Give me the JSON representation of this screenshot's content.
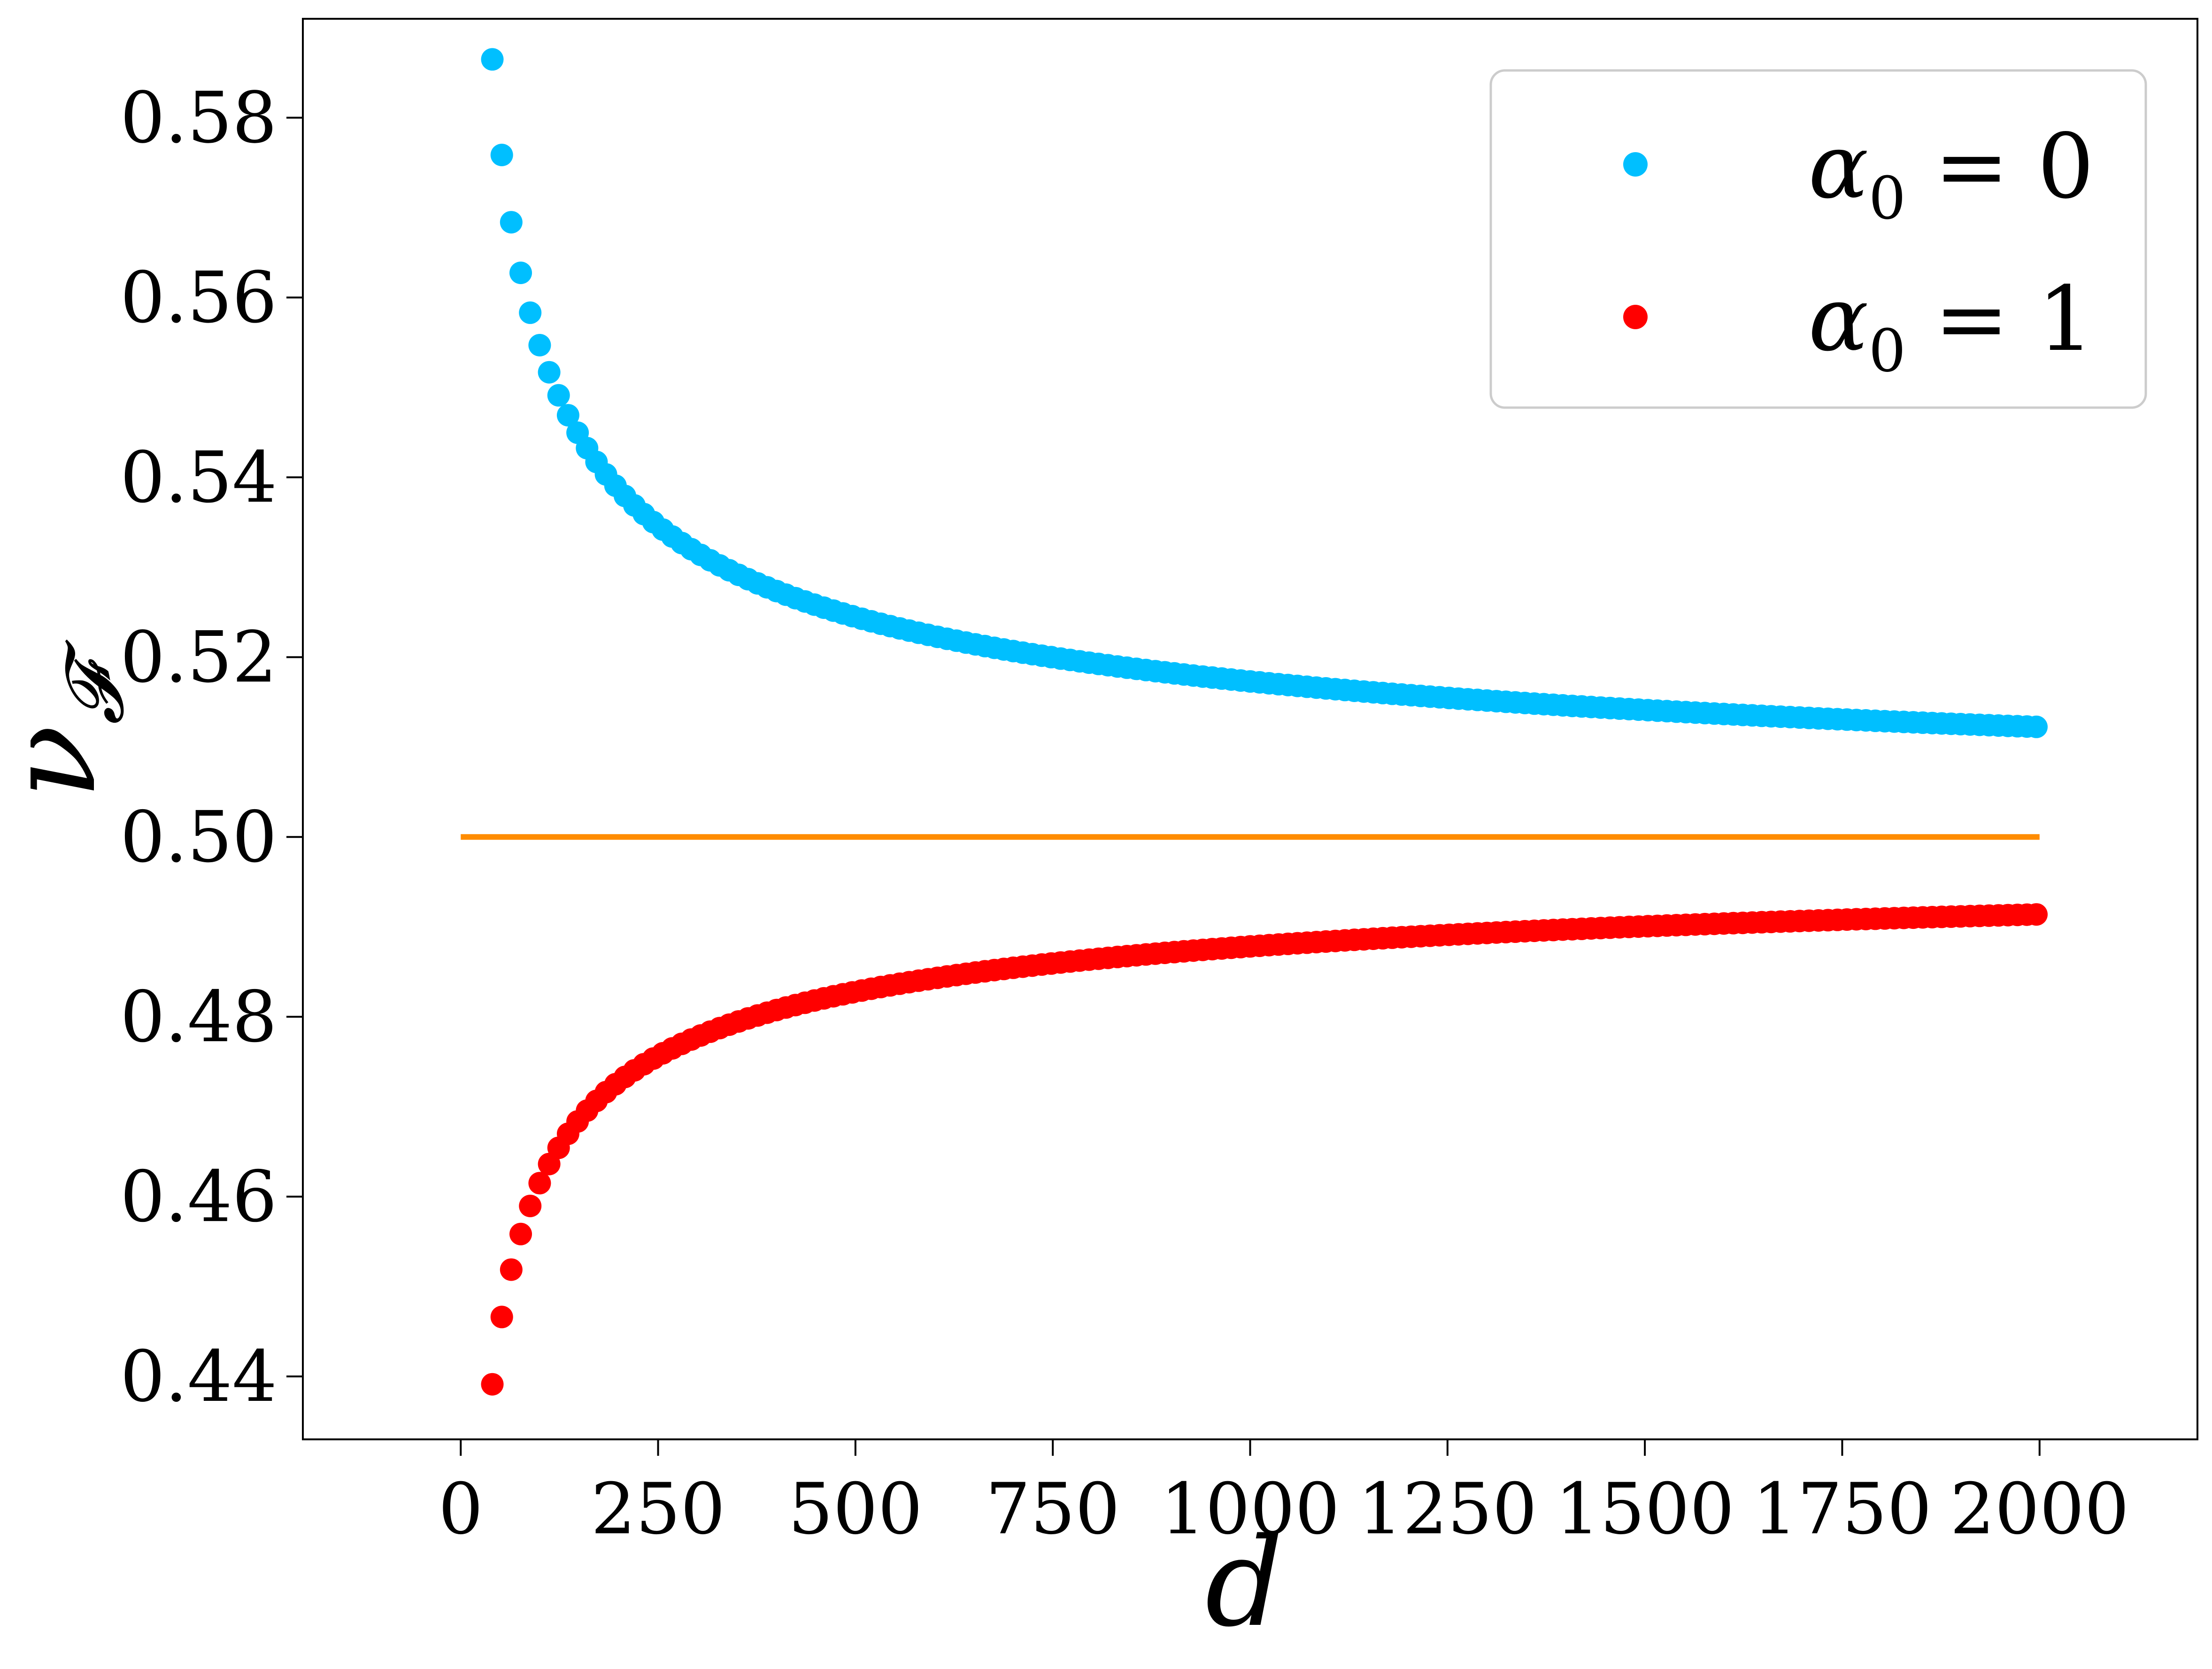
{
  "chart_data": {
    "type": "scatter",
    "xlabel": "d",
    "ylabel": "ν",
    "ylabel_subscript": "𝓕",
    "xlim": [
      -200,
      2200
    ],
    "ylim": [
      0.433,
      0.591
    ],
    "xticks": [
      0,
      250,
      500,
      750,
      1000,
      1250,
      1500,
      1750,
      2000
    ],
    "xtick_labels": [
      "0",
      "250",
      "500",
      "750",
      "1000",
      "1250",
      "1500",
      "1750",
      "2000"
    ],
    "yticks": [
      0.44,
      0.46,
      0.48,
      0.5,
      0.52,
      0.54,
      0.56,
      0.58
    ],
    "ytick_labels": [
      "0.44",
      "0.46",
      "0.48",
      "0.50",
      "0.52",
      "0.54",
      "0.56",
      "0.58"
    ],
    "grid": false,
    "legend_position": "top-right",
    "reference_line": {
      "y": 0.5,
      "x": [
        0,
        2000
      ],
      "color": "#ff8c00"
    },
    "series": [
      {
        "name": "α0 = 0",
        "name_main": "α",
        "name_sub": "0",
        "name_rest": " = 0",
        "color": "#00bfff",
        "x_start": 40,
        "x_end": 2000,
        "x_step": 12,
        "model": "y = 0.5 + 0.547 / sqrt(x)",
        "coef": 0.547
      },
      {
        "name": "α0 = 1",
        "name_main": "α",
        "name_sub": "0",
        "name_rest": " = 1",
        "color": "#ff0000",
        "x_start": 40,
        "x_end": 2000,
        "x_step": 12,
        "model": "y = 0.5 - 0.385 / sqrt(x)",
        "coef": -0.385
      }
    ]
  }
}
